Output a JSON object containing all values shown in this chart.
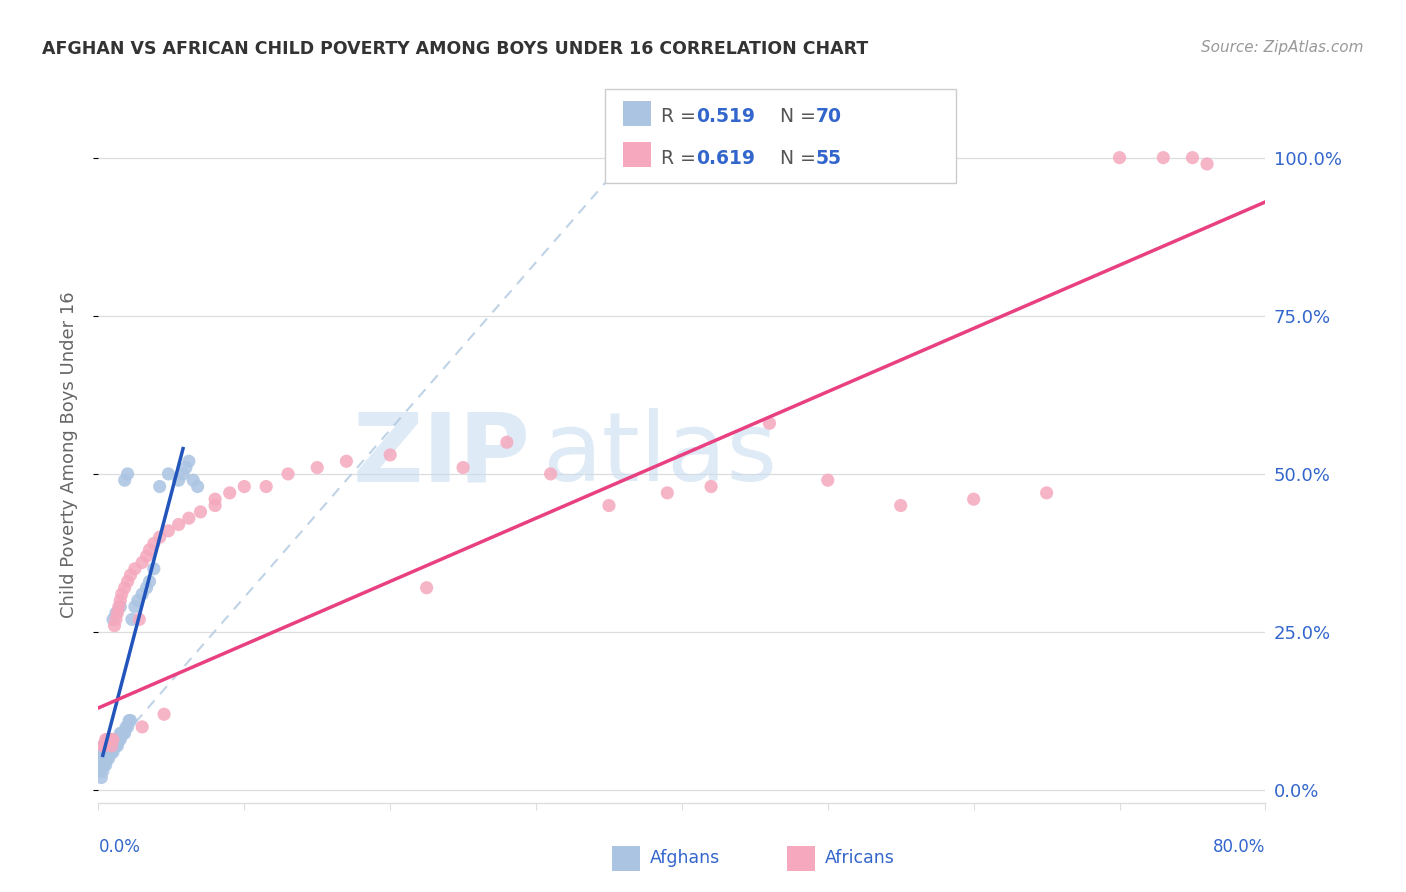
{
  "title": "AFGHAN VS AFRICAN CHILD POVERTY AMONG BOYS UNDER 16 CORRELATION CHART",
  "source": "Source: ZipAtlas.com",
  "ylabel": "Child Poverty Among Boys Under 16",
  "xlim": [
    0.0,
    0.8
  ],
  "ylim": [
    -0.02,
    1.08
  ],
  "ytick_values": [
    0.0,
    0.25,
    0.5,
    0.75,
    1.0
  ],
  "ytick_labels": [
    "0.0%",
    "25.0%",
    "50.0%",
    "75.0%",
    "100.0%"
  ],
  "xtick_label_left": "0.0%",
  "xtick_label_right": "80.0%",
  "afghan_color": "#aac4e2",
  "african_color": "#f5a8be",
  "afghan_line_color": "#2255bb",
  "african_line_color": "#e84080",
  "diagonal_color": "#b0c8e0",
  "label_color": "#3366cc",
  "title_color": "#333333",
  "source_color": "#999999",
  "grid_color": "#dddddd",
  "watermark_zip_color": "#c8ddf0",
  "watermark_atlas_color": "#c8ddf0",
  "legend_r1": "R = 0.519",
  "legend_n1": "N = 70",
  "legend_r2": "R = 0.619",
  "legend_n2": "N = 55",
  "afghan_line_x": [
    0.003,
    0.058
  ],
  "afghan_line_y": [
    0.055,
    0.54
  ],
  "african_line_x": [
    0.0,
    0.8
  ],
  "african_line_y": [
    0.13,
    0.93
  ],
  "diag_line_x": [
    0.0,
    0.37
  ],
  "diag_line_y": [
    0.04,
    1.02
  ],
  "afghans_x": [
    0.001,
    0.001,
    0.001,
    0.002,
    0.002,
    0.002,
    0.002,
    0.003,
    0.003,
    0.003,
    0.003,
    0.004,
    0.004,
    0.004,
    0.005,
    0.005,
    0.005,
    0.005,
    0.006,
    0.006,
    0.006,
    0.007,
    0.007,
    0.007,
    0.007,
    0.008,
    0.008,
    0.008,
    0.009,
    0.009,
    0.009,
    0.01,
    0.01,
    0.01,
    0.011,
    0.011,
    0.012,
    0.012,
    0.013,
    0.013,
    0.014,
    0.015,
    0.015,
    0.016,
    0.017,
    0.018,
    0.019,
    0.02,
    0.021,
    0.022,
    0.023,
    0.025,
    0.027,
    0.03,
    0.033,
    0.035,
    0.038,
    0.042,
    0.048,
    0.055,
    0.058,
    0.06,
    0.062,
    0.065,
    0.068,
    0.01,
    0.012,
    0.015,
    0.018,
    0.02
  ],
  "afghans_y": [
    0.03,
    0.04,
    0.05,
    0.02,
    0.04,
    0.05,
    0.06,
    0.03,
    0.05,
    0.06,
    0.07,
    0.04,
    0.05,
    0.06,
    0.04,
    0.05,
    0.06,
    0.07,
    0.05,
    0.06,
    0.07,
    0.05,
    0.06,
    0.07,
    0.08,
    0.06,
    0.07,
    0.08,
    0.06,
    0.07,
    0.08,
    0.06,
    0.07,
    0.08,
    0.07,
    0.08,
    0.07,
    0.08,
    0.07,
    0.08,
    0.08,
    0.08,
    0.09,
    0.09,
    0.09,
    0.09,
    0.1,
    0.1,
    0.11,
    0.11,
    0.27,
    0.29,
    0.3,
    0.31,
    0.32,
    0.33,
    0.35,
    0.48,
    0.5,
    0.49,
    0.5,
    0.51,
    0.52,
    0.49,
    0.48,
    0.27,
    0.28,
    0.29,
    0.49,
    0.5
  ],
  "africans_x": [
    0.003,
    0.004,
    0.005,
    0.006,
    0.007,
    0.008,
    0.009,
    0.01,
    0.011,
    0.012,
    0.013,
    0.014,
    0.015,
    0.016,
    0.018,
    0.02,
    0.022,
    0.025,
    0.028,
    0.03,
    0.033,
    0.035,
    0.038,
    0.042,
    0.048,
    0.055,
    0.062,
    0.07,
    0.08,
    0.09,
    0.1,
    0.115,
    0.13,
    0.15,
    0.17,
    0.2,
    0.225,
    0.25,
    0.28,
    0.31,
    0.35,
    0.39,
    0.42,
    0.46,
    0.5,
    0.55,
    0.6,
    0.65,
    0.7,
    0.73,
    0.75,
    0.76,
    0.03,
    0.045,
    0.08
  ],
  "africans_y": [
    0.07,
    0.07,
    0.08,
    0.08,
    0.08,
    0.08,
    0.07,
    0.08,
    0.26,
    0.27,
    0.28,
    0.29,
    0.3,
    0.31,
    0.32,
    0.33,
    0.34,
    0.35,
    0.27,
    0.36,
    0.37,
    0.38,
    0.39,
    0.4,
    0.41,
    0.42,
    0.43,
    0.44,
    0.46,
    0.47,
    0.48,
    0.48,
    0.5,
    0.51,
    0.52,
    0.53,
    0.32,
    0.51,
    0.55,
    0.5,
    0.45,
    0.47,
    0.48,
    0.58,
    0.49,
    0.45,
    0.46,
    0.47,
    1.0,
    1.0,
    1.0,
    0.99,
    0.1,
    0.12,
    0.45
  ]
}
